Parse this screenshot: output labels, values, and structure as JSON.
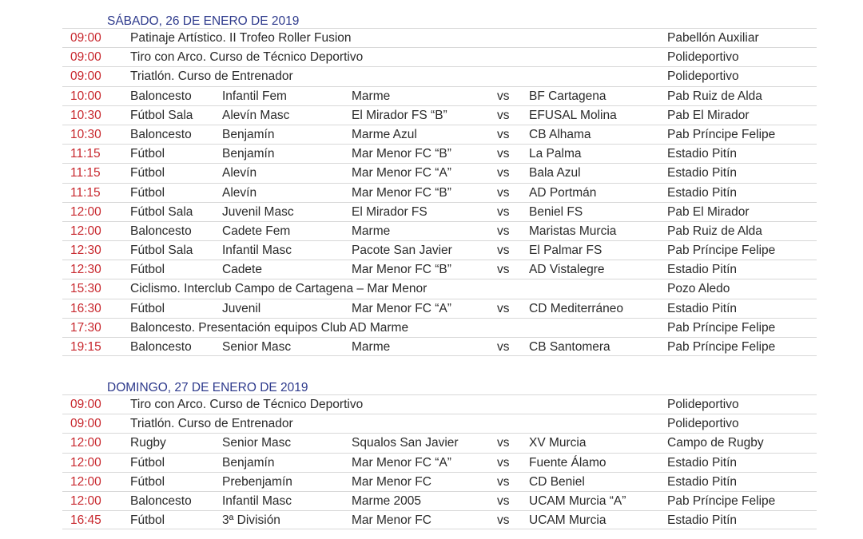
{
  "vs_label": "vs",
  "days": [
    {
      "title": "SÁBADO, 26 DE ENERO DE 2019",
      "rows": [
        {
          "time": "09:00",
          "event": "Patinaje Artístico. II Trofeo Roller Fusion",
          "venue": "Pabellón Auxiliar"
        },
        {
          "time": "09:00",
          "event": "Tiro con Arco. Curso de Técnico Deportivo",
          "venue": "Polideportivo"
        },
        {
          "time": "09:00",
          "event": "Triatlón. Curso de Entrenador",
          "venue": "Polideportivo"
        },
        {
          "time": "10:00",
          "sport": "Baloncesto",
          "category": "Infantil Fem",
          "home": "Marme",
          "away": "BF Cartagena",
          "venue": "Pab Ruiz de Alda"
        },
        {
          "time": "10:30",
          "sport": "Fútbol Sala",
          "category": "Alevín Masc",
          "home": "El Mirador FS “B”",
          "away": "EFUSAL Molina",
          "venue": "Pab El Mirador"
        },
        {
          "time": "10:30",
          "sport": "Baloncesto",
          "category": "Benjamín",
          "home": "Marme Azul",
          "away": "CB Alhama",
          "venue": "Pab Príncipe Felipe"
        },
        {
          "time": "11:15",
          "sport": "Fútbol",
          "category": "Benjamín",
          "home": "Mar Menor FC “B”",
          "away": "La Palma",
          "venue": "Estadio Pitín"
        },
        {
          "time": "11:15",
          "sport": "Fútbol",
          "category": "Alevín",
          "home": "Mar Menor FC “A”",
          "away": "Bala Azul",
          "venue": "Estadio Pitín"
        },
        {
          "time": "11:15",
          "sport": "Fútbol",
          "category": "Alevín",
          "home": "Mar Menor FC “B”",
          "away": "AD Portmán",
          "venue": "Estadio Pitín"
        },
        {
          "time": "12:00",
          "sport": "Fútbol Sala",
          "category": "Juvenil Masc",
          "home": "El Mirador FS",
          "away": "Beniel FS",
          "venue": "Pab El Mirador"
        },
        {
          "time": "12:00",
          "sport": "Baloncesto",
          "category": "Cadete Fem",
          "home": "Marme",
          "away": "Maristas Murcia",
          "venue": "Pab Ruiz de Alda"
        },
        {
          "time": "12:30",
          "sport": "Fútbol Sala",
          "category": "Infantil Masc",
          "home": "Pacote San Javier",
          "away": "El Palmar FS",
          "venue": "Pab Príncipe Felipe"
        },
        {
          "time": "12:30",
          "sport": "Fútbol",
          "category": "Cadete",
          "home": "Mar Menor FC “B”",
          "away": "AD Vistalegre",
          "venue": "Estadio Pitín"
        },
        {
          "time": "15:30",
          "event": "Ciclismo. Interclub Campo de Cartagena – Mar Menor",
          "venue": "Pozo Aledo"
        },
        {
          "time": "16:30",
          "sport": "Fútbol",
          "category": "Juvenil",
          "home": "Mar Menor FC “A”",
          "away": "CD Mediterráneo",
          "venue": "Estadio Pitín"
        },
        {
          "time": "17:30",
          "event": "Baloncesto. Presentación equipos Club AD Marme",
          "venue": "Pab Príncipe Felipe"
        },
        {
          "time": "19:15",
          "sport": "Baloncesto",
          "category": "Senior Masc",
          "home": "Marme",
          "away": "CB Santomera",
          "venue": "Pab Príncipe Felipe"
        }
      ]
    },
    {
      "title": "DOMINGO, 27 DE ENERO DE 2019",
      "rows": [
        {
          "time": "09:00",
          "event": "Tiro con Arco. Curso de Técnico Deportivo",
          "venue": "Polideportivo"
        },
        {
          "time": "09:00",
          "event": "Triatlón. Curso de Entrenador",
          "venue": "Polideportivo"
        },
        {
          "time": "12:00",
          "sport": "Rugby",
          "category": "Senior Masc",
          "home": "Squalos San Javier",
          "away": "XV Murcia",
          "venue": "Campo de Rugby"
        },
        {
          "time": "12:00",
          "sport": "Fútbol",
          "category": "Benjamín",
          "home": "Mar Menor FC “A”",
          "away": "Fuente Álamo",
          "venue": "Estadio Pitín"
        },
        {
          "time": "12:00",
          "sport": "Fútbol",
          "category": "Prebenjamín",
          "home": "Mar Menor FC",
          "away": "CD Beniel",
          "venue": "Estadio Pitín"
        },
        {
          "time": "12:00",
          "sport": "Baloncesto",
          "category": "Infantil Masc",
          "home": "Marme 2005",
          "away": "UCAM Murcia “A”",
          "venue": "Pab Príncipe Felipe"
        },
        {
          "time": "16:45",
          "sport": "Fútbol",
          "category": "3ª División",
          "home": "Mar Menor FC",
          "away": "UCAM Murcia",
          "venue": "Estadio Pitín"
        }
      ]
    }
  ]
}
